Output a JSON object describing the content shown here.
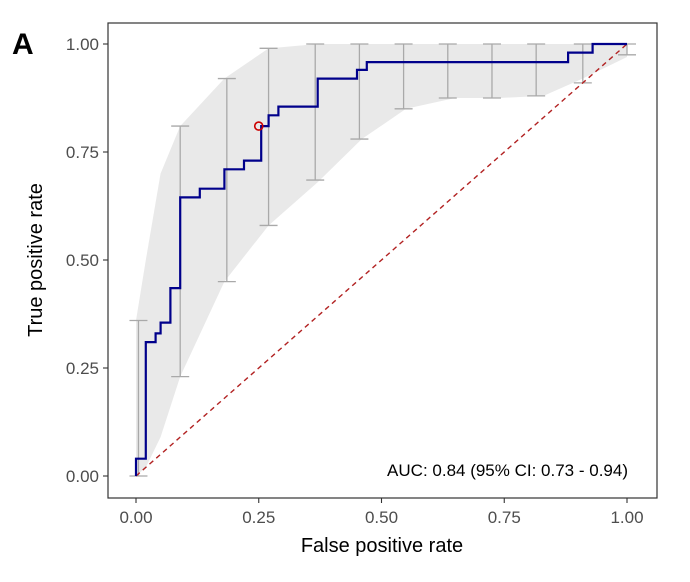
{
  "panel_label": "A",
  "chart_data": {
    "type": "line",
    "title": "",
    "xlabel": "False positive rate",
    "ylabel": "True positive rate",
    "xlim": [
      0,
      1
    ],
    "ylim": [
      0,
      1
    ],
    "x_ticks": [
      "0.00",
      "0.25",
      "0.50",
      "0.75",
      "1.00"
    ],
    "y_ticks": [
      "0.00",
      "0.25",
      "0.50",
      "0.75",
      "1.00"
    ],
    "grid": false,
    "annotation": "AUC: 0.84 (95% CI: 0.73 - 0.94)",
    "roc_curve": {
      "color": "#00008B",
      "x": [
        0,
        0,
        0.02,
        0.02,
        0.04,
        0.04,
        0.05,
        0.05,
        0.07,
        0.07,
        0.09,
        0.09,
        0.13,
        0.13,
        0.18,
        0.18,
        0.22,
        0.22,
        0.255,
        0.255,
        0.27,
        0.27,
        0.29,
        0.29,
        0.37,
        0.37,
        0.45,
        0.45,
        0.47,
        0.47,
        0.88,
        0.88,
        0.93,
        0.93,
        1
      ],
      "y": [
        0,
        0.04,
        0.04,
        0.31,
        0.31,
        0.33,
        0.33,
        0.355,
        0.355,
        0.435,
        0.435,
        0.645,
        0.645,
        0.665,
        0.665,
        0.71,
        0.71,
        0.73,
        0.73,
        0.81,
        0.81,
        0.835,
        0.835,
        0.855,
        0.855,
        0.92,
        0.92,
        0.94,
        0.94,
        0.958,
        0.958,
        0.98,
        0.98,
        1,
        1
      ]
    },
    "confidence_band": {
      "color": "#e9e9e9",
      "x": [
        0,
        0.02,
        0.05,
        0.09,
        0.18,
        0.27,
        0.37,
        0.46,
        0.55,
        0.65,
        0.74,
        0.83,
        0.91,
        1
      ],
      "lower": [
        0,
        0.02,
        0.09,
        0.23,
        0.45,
        0.58,
        0.68,
        0.78,
        0.85,
        0.875,
        0.875,
        0.88,
        0.92,
        0.97
      ],
      "upper": [
        0.36,
        0.5,
        0.7,
        0.81,
        0.92,
        0.99,
        1,
        1,
        1,
        1,
        1,
        1,
        1,
        1
      ]
    },
    "error_bars": {
      "color": "#a9a9a9",
      "x": [
        0.005,
        0.09,
        0.185,
        0.27,
        0.365,
        0.455,
        0.545,
        0.635,
        0.725,
        0.815,
        0.91,
        1
      ],
      "lower": [
        0,
        0.23,
        0.45,
        0.58,
        0.685,
        0.78,
        0.85,
        0.875,
        0.875,
        0.88,
        0.91,
        0.975
      ],
      "upper": [
        0.36,
        0.81,
        0.92,
        0.99,
        1,
        1,
        1,
        1,
        1,
        1,
        1,
        1
      ]
    },
    "threshold_point": {
      "x": 0.25,
      "y": 0.81,
      "color": "#cc0000"
    },
    "reference_line": {
      "x": [
        0,
        1
      ],
      "y": [
        0,
        1
      ],
      "color": "#b22222",
      "style": "dashed"
    }
  }
}
